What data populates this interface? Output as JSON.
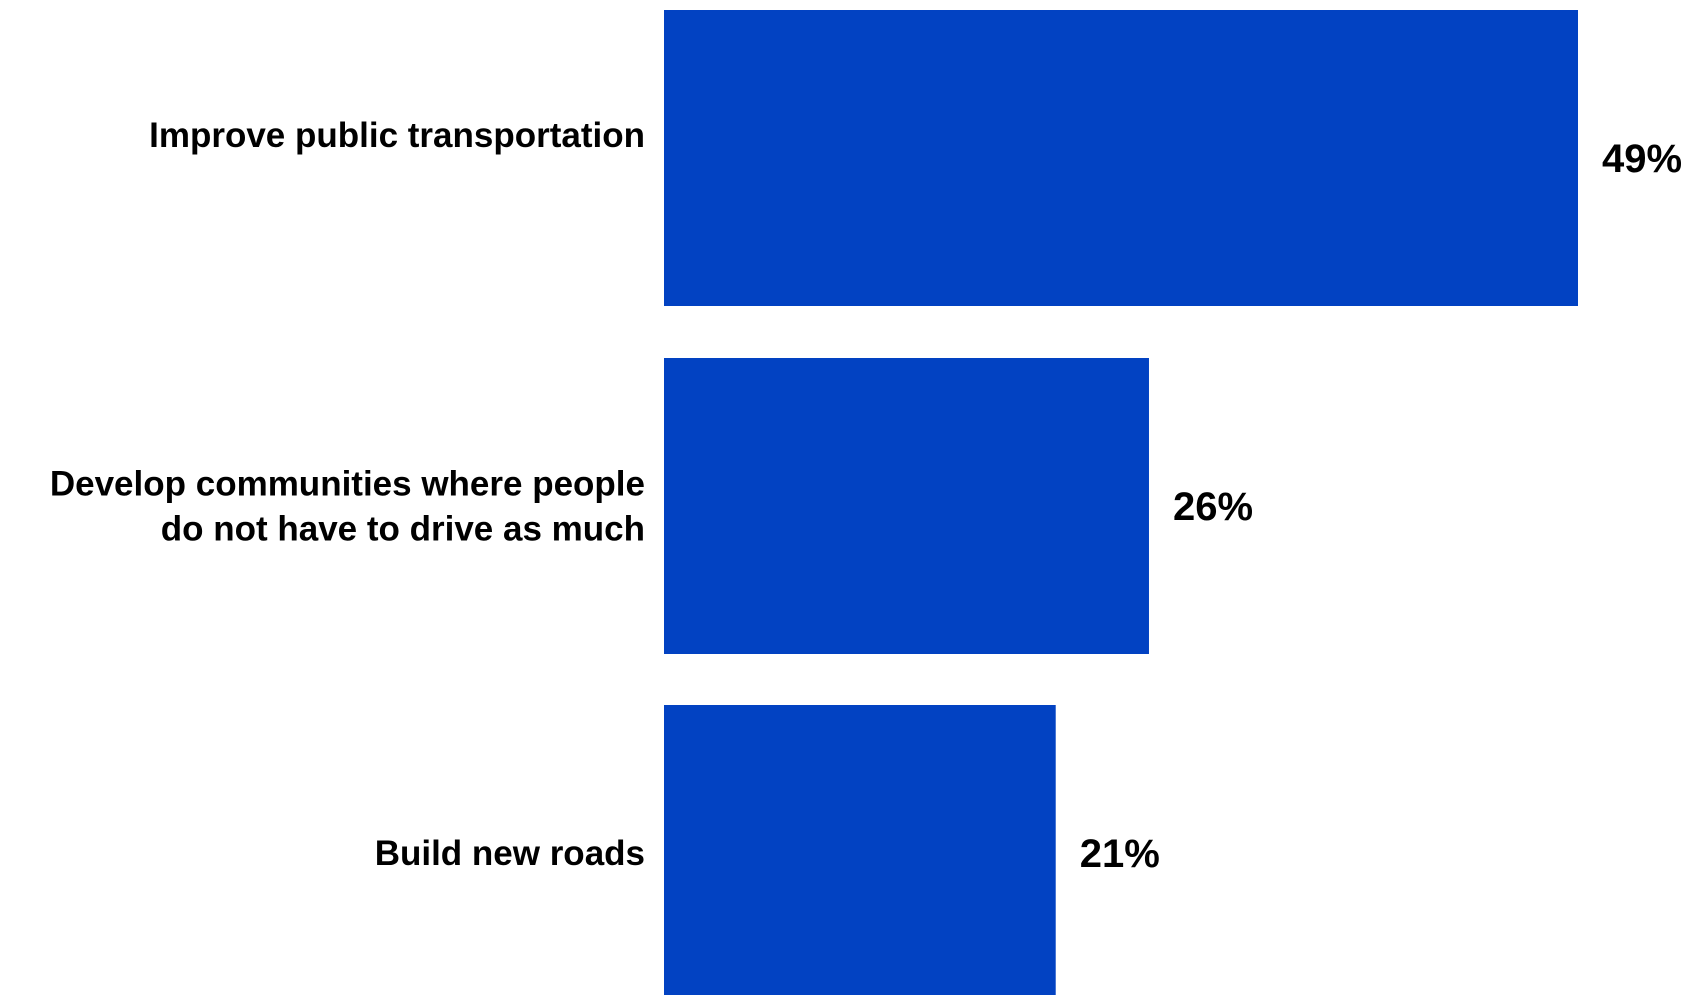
{
  "chart_data": {
    "type": "bar",
    "orientation": "horizontal",
    "categories": [
      [
        "Improve public transportation"
      ],
      [
        "Develop communities where people",
        "do not have to drive as much"
      ],
      [
        "Build new roads"
      ]
    ],
    "values": [
      49,
      26,
      21
    ],
    "value_labels": [
      "49%",
      "26%",
      "21%"
    ],
    "xlim": [
      0,
      49
    ],
    "grid": false,
    "legend": "none",
    "bar_color": "#0242C2"
  }
}
